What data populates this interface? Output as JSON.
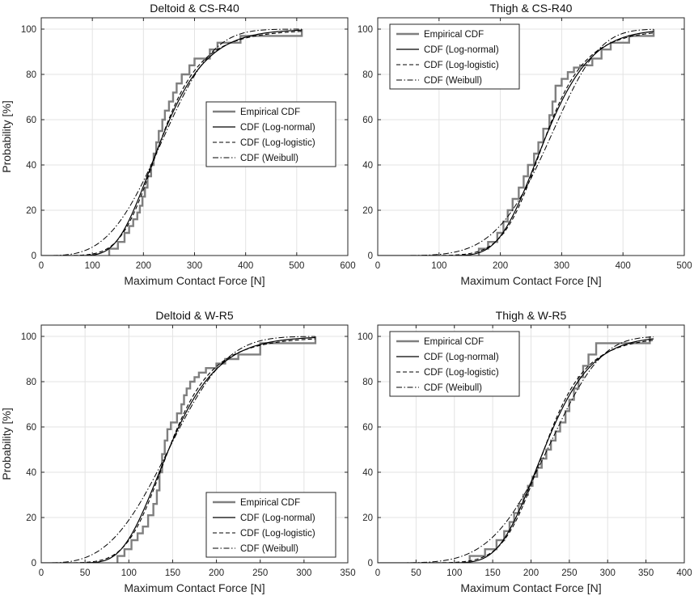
{
  "styles": {
    "empirical_color": "#7f7f7f",
    "model_color": "#000000",
    "grid_color": "#e3e3e3",
    "frame_color": "#262626"
  },
  "chart_data": [
    {
      "type": "line",
      "title": "Deltoid & CS-R40",
      "xlabel": "Maximum Contact Force [N]",
      "ylabel": "Probability [%]",
      "xlim": [
        0,
        600
      ],
      "ylim": [
        0,
        105
      ],
      "xticks": [
        0,
        100,
        200,
        300,
        400,
        500,
        600
      ],
      "yticks": [
        0,
        20,
        40,
        60,
        80,
        100
      ],
      "grid": true,
      "legend_position": "middle-right",
      "legend": [
        "Empirical CDF",
        "CDF (Log-normal)",
        "CDF (Log-logistic)",
        "CDF (Weibull)"
      ],
      "series": [
        {
          "name": "Empirical CDF",
          "kind": "step",
          "x": [
            133,
            133,
            150,
            163,
            172,
            180,
            188,
            193,
            198,
            203,
            208,
            215,
            220,
            225,
            230,
            237,
            242,
            250,
            258,
            265,
            275,
            290,
            300,
            330,
            345,
            390,
            510
          ],
          "y": [
            0,
            3,
            6,
            10,
            13,
            16,
            19,
            22,
            26,
            30,
            35,
            40,
            45,
            50,
            55,
            60,
            64,
            68,
            72,
            76,
            80,
            84,
            87,
            91,
            94,
            97,
            100
          ]
        },
        {
          "name": "CDF (Log-normal)",
          "kind": "lognormal",
          "params": [
            5.45,
            0.3
          ],
          "x_range": [
            0,
            510
          ]
        },
        {
          "name": "CDF (Log-logistic)",
          "kind": "loglogistic",
          "params": [
            5.45,
            0.17
          ],
          "x_range": [
            0,
            510
          ]
        },
        {
          "name": "CDF (Weibull)",
          "kind": "weibull",
          "params": [
            262,
            3.4
          ],
          "x_range": [
            0,
            510
          ]
        }
      ]
    },
    {
      "type": "line",
      "title": "Thigh & CS-R40",
      "xlabel": "Maximum Contact Force [N]",
      "ylabel": "",
      "xlim": [
        0,
        500
      ],
      "ylim": [
        0,
        105
      ],
      "xticks": [
        0,
        100,
        200,
        300,
        400,
        500
      ],
      "yticks": [
        0,
        20,
        40,
        60,
        80,
        100
      ],
      "grid": true,
      "legend_position": "top-left",
      "legend": [
        "Empirical CDF",
        "CDF (Log-normal)",
        "CDF (Log-logistic)",
        "CDF (Weibull)"
      ],
      "series": [
        {
          "name": "Empirical CDF",
          "kind": "step",
          "x": [
            165,
            165,
            180,
            195,
            205,
            212,
            220,
            230,
            238,
            245,
            255,
            262,
            270,
            280,
            285,
            290,
            300,
            310,
            320,
            330,
            350,
            365,
            380,
            410,
            450
          ],
          "y": [
            0,
            3,
            6,
            10,
            15,
            20,
            25,
            30,
            35,
            40,
            45,
            50,
            56,
            62,
            68,
            75,
            78,
            81,
            83,
            84,
            87,
            91,
            94,
            97,
            100
          ]
        },
        {
          "name": "CDF (Log-normal)",
          "kind": "lognormal",
          "params": [
            5.6,
            0.22
          ],
          "x_range": [
            0,
            450
          ]
        },
        {
          "name": "CDF (Log-logistic)",
          "kind": "loglogistic",
          "params": [
            5.6,
            0.125
          ],
          "x_range": [
            0,
            450
          ]
        },
        {
          "name": "CDF (Weibull)",
          "kind": "weibull",
          "params": [
            300,
            4.8
          ],
          "x_range": [
            0,
            450
          ]
        }
      ]
    },
    {
      "type": "line",
      "title": "Deltoid & W-R5",
      "xlabel": "Maximum Contact Force [N]",
      "ylabel": "Probability [%]",
      "xlim": [
        0,
        350
      ],
      "ylim": [
        0,
        105
      ],
      "xticks": [
        0,
        50,
        100,
        150,
        200,
        250,
        300,
        350
      ],
      "yticks": [
        0,
        20,
        40,
        60,
        80,
        100
      ],
      "grid": true,
      "legend_position": "bottom-right",
      "legend": [
        "Empirical CDF",
        "CDF (Log-normal)",
        "CDF (Log-logistic)",
        "CDF (Weibull)"
      ],
      "series": [
        {
          "name": "Empirical CDF",
          "kind": "step",
          "x": [
            87,
            87,
            95,
            103,
            110,
            116,
            122,
            128,
            132,
            135,
            138,
            141,
            144,
            148,
            155,
            160,
            163,
            166,
            170,
            175,
            180,
            188,
            200,
            210,
            225,
            250,
            313
          ],
          "y": [
            0,
            3,
            6,
            10,
            13,
            16,
            21,
            26,
            32,
            40,
            48,
            54,
            59,
            62,
            66,
            70,
            74,
            77,
            80,
            82,
            84,
            86,
            88,
            90,
            92,
            97,
            100
          ]
        },
        {
          "name": "CDF (Log-normal)",
          "kind": "lognormal",
          "params": [
            4.98,
            0.3
          ],
          "x_range": [
            0,
            313
          ]
        },
        {
          "name": "CDF (Log-logistic)",
          "kind": "loglogistic",
          "params": [
            4.98,
            0.17
          ],
          "x_range": [
            0,
            313
          ]
        },
        {
          "name": "CDF (Weibull)",
          "kind": "weibull",
          "params": [
            163,
            3.2
          ],
          "x_range": [
            0,
            313
          ]
        }
      ]
    },
    {
      "type": "line",
      "title": "Thigh & W-R5",
      "xlabel": "Maximum Contact Force [N]",
      "ylabel": "",
      "xlim": [
        0,
        400
      ],
      "ylim": [
        0,
        105
      ],
      "xticks": [
        0,
        50,
        100,
        150,
        200,
        250,
        300,
        350,
        400
      ],
      "yticks": [
        0,
        20,
        40,
        60,
        80,
        100
      ],
      "grid": true,
      "legend_position": "top-left",
      "legend": [
        "Empirical CDF",
        "CDF (Log-normal)",
        "CDF (Log-logistic)",
        "CDF (Weibull)"
      ],
      "series": [
        {
          "name": "Empirical CDF",
          "kind": "step",
          "x": [
            120,
            120,
            140,
            155,
            165,
            172,
            178,
            184,
            190,
            196,
            202,
            208,
            214,
            220,
            226,
            232,
            238,
            245,
            250,
            256,
            262,
            268,
            275,
            285,
            355
          ],
          "y": [
            0,
            3,
            6,
            10,
            14,
            18,
            22,
            26,
            30,
            34,
            38,
            42,
            46,
            50,
            54,
            58,
            62,
            67,
            72,
            77,
            82,
            87,
            92,
            97,
            100
          ]
        },
        {
          "name": "CDF (Log-normal)",
          "kind": "lognormal",
          "params": [
            5.38,
            0.22
          ],
          "x_range": [
            0,
            360
          ]
        },
        {
          "name": "CDF (Log-logistic)",
          "kind": "loglogistic",
          "params": [
            5.38,
            0.125
          ],
          "x_range": [
            0,
            360
          ]
        },
        {
          "name": "CDF (Weibull)",
          "kind": "weibull",
          "params": [
            240,
            4.5
          ],
          "x_range": [
            0,
            360
          ]
        }
      ]
    }
  ]
}
